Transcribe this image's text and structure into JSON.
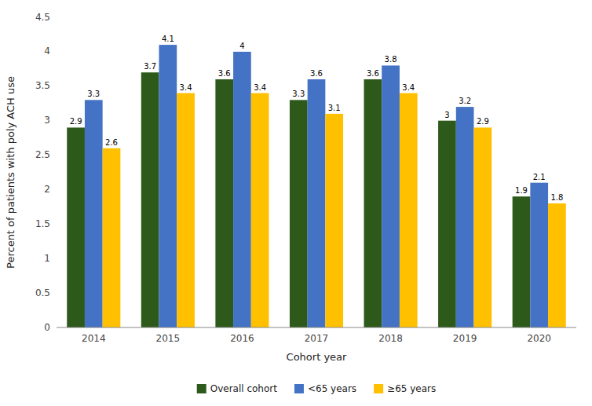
{
  "chart_data": {
    "type": "bar",
    "categories": [
      "2014",
      "2015",
      "2016",
      "2017",
      "2018",
      "2019",
      "2020"
    ],
    "series": [
      {
        "name": "Overall cohort",
        "color": "#2d5a1b",
        "values": [
          2.9,
          3.7,
          3.6,
          3.3,
          3.6,
          3.0,
          1.9
        ]
      },
      {
        "name": "<65 years",
        "color": "#4472c4",
        "values": [
          3.3,
          4.1,
          4.0,
          3.6,
          3.8,
          3.2,
          2.1
        ]
      },
      {
        "name": "≥65 years",
        "color": "#ffc000",
        "values": [
          2.6,
          3.4,
          3.4,
          3.1,
          3.4,
          2.9,
          1.8
        ]
      }
    ],
    "xlabel": "Cohort year",
    "ylabel": "Percent of patients with poly ACH use",
    "ylim": [
      0,
      4.5
    ],
    "yticks": [
      0,
      0.5,
      1,
      1.5,
      2,
      2.5,
      3,
      3.5,
      4,
      4.5
    ],
    "grid": false,
    "data_labels": true,
    "legend": "bottom"
  }
}
